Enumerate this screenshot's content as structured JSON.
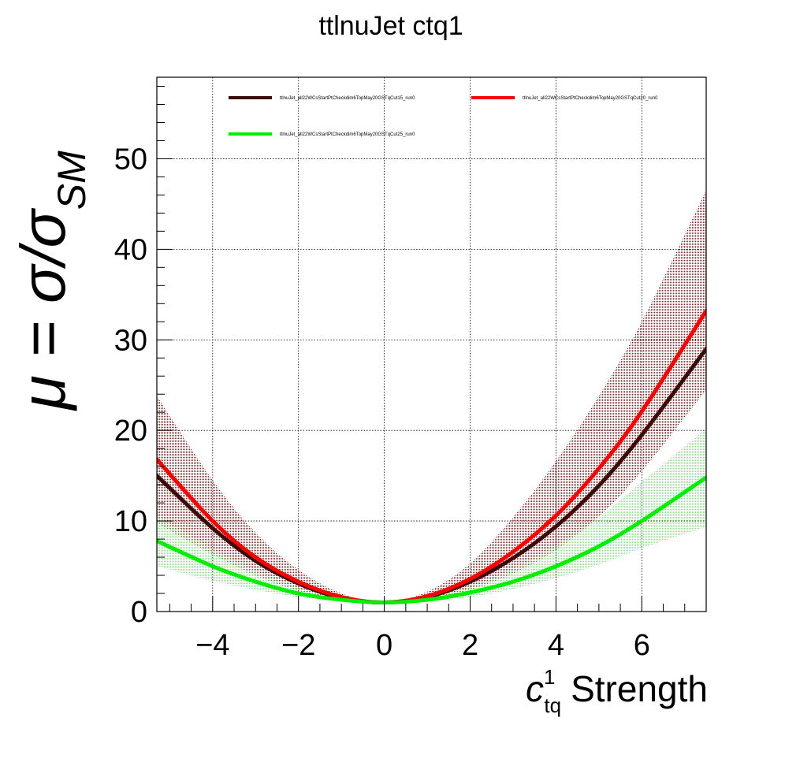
{
  "title": "ttlnuJet ctq1",
  "chart_data": {
    "type": "line",
    "title": "ttlnuJet ctq1",
    "xlabel": "c_tq^1 Strength",
    "xlabel_parts": {
      "symbol": "c",
      "sup": "1",
      "sub": "tq",
      "rest": "Strength"
    },
    "ylabel": "μ = σ/σ_SM",
    "ylabel_parts": {
      "main": "μ = σ/σ",
      "sub": "SM"
    },
    "xlim": [
      -5.3,
      7.5
    ],
    "ylim": [
      0,
      59
    ],
    "xticks": [
      -4,
      -2,
      0,
      2,
      4,
      6
    ],
    "xtick_labels": [
      "−4",
      "−2",
      "0",
      "2",
      "4",
      "6"
    ],
    "yticks": [
      0,
      10,
      20,
      30,
      40,
      50
    ],
    "ytick_labels": [
      "0",
      "10",
      "20",
      "30",
      "40",
      "50"
    ],
    "grid": true,
    "legend_position": "top",
    "series": [
      {
        "name": "ttlnuJet_all22WCsStartPtCheckdim6TopMay20GSTqCut15_run0",
        "color": "#3d0a0a",
        "x": [
          -5.3,
          -4,
          -3,
          -2,
          -1,
          0,
          1,
          2,
          3,
          4,
          5,
          6,
          7.5
        ],
        "y": [
          15.0,
          9.2,
          5.6,
          3.1,
          1.5,
          1.0,
          1.6,
          3.3,
          5.9,
          9.4,
          13.9,
          19.5,
          29.0
        ]
      },
      {
        "name": "ttlnuJet_all22WCsStartPtCheckdim6TopMay20GSTqCut20_run0",
        "color": "#ff0000",
        "x": [
          -5.3,
          -4,
          -3,
          -2,
          -1,
          0,
          1,
          2,
          3,
          4,
          5,
          6,
          7.5
        ],
        "y": [
          16.8,
          10.0,
          6.0,
          3.3,
          1.6,
          1.0,
          1.7,
          3.6,
          6.6,
          10.6,
          15.8,
          22.1,
          33.2
        ]
      },
      {
        "name": "ttlnuJet_all22WCsStartPtCheckdim6TopMay20GSTqCut25_run0",
        "color": "#00ee00",
        "x": [
          -5.3,
          -4,
          -3,
          -2,
          -1,
          0,
          1,
          2,
          3,
          4,
          5,
          6,
          7.5
        ],
        "y": [
          7.8,
          5.0,
          3.3,
          2.0,
          1.3,
          1.0,
          1.3,
          2.1,
          3.3,
          5.0,
          7.2,
          10.0,
          14.8
        ]
      }
    ],
    "bands": [
      {
        "color": "#8b1a1a",
        "x": [
          -5.3,
          -4,
          -3,
          -2,
          -1,
          0,
          1,
          2,
          3,
          4,
          5,
          6,
          7.5
        ],
        "low": [
          9.8,
          6.3,
          4.0,
          2.3,
          1.3,
          1.0,
          1.3,
          2.4,
          4.2,
          6.8,
          10.5,
          15.5,
          24.5
        ],
        "high": [
          23.8,
          14.5,
          8.7,
          4.6,
          2.0,
          1.0,
          2.2,
          5.3,
          10.4,
          16.6,
          23.8,
          32.0,
          46.5
        ]
      },
      {
        "color": "#33cc33",
        "x": [
          -5.3,
          -4,
          -3,
          -2,
          -1,
          0,
          1,
          2,
          3,
          4,
          5,
          6,
          7.5
        ],
        "low": [
          5.0,
          3.4,
          2.4,
          1.6,
          1.15,
          1.0,
          1.15,
          1.6,
          2.5,
          3.7,
          5.2,
          7.0,
          9.4
        ],
        "high": [
          10.6,
          6.9,
          4.5,
          2.6,
          1.5,
          1.0,
          1.5,
          2.7,
          4.7,
          7.3,
          10.4,
          14.3,
          20.2
        ]
      }
    ]
  }
}
